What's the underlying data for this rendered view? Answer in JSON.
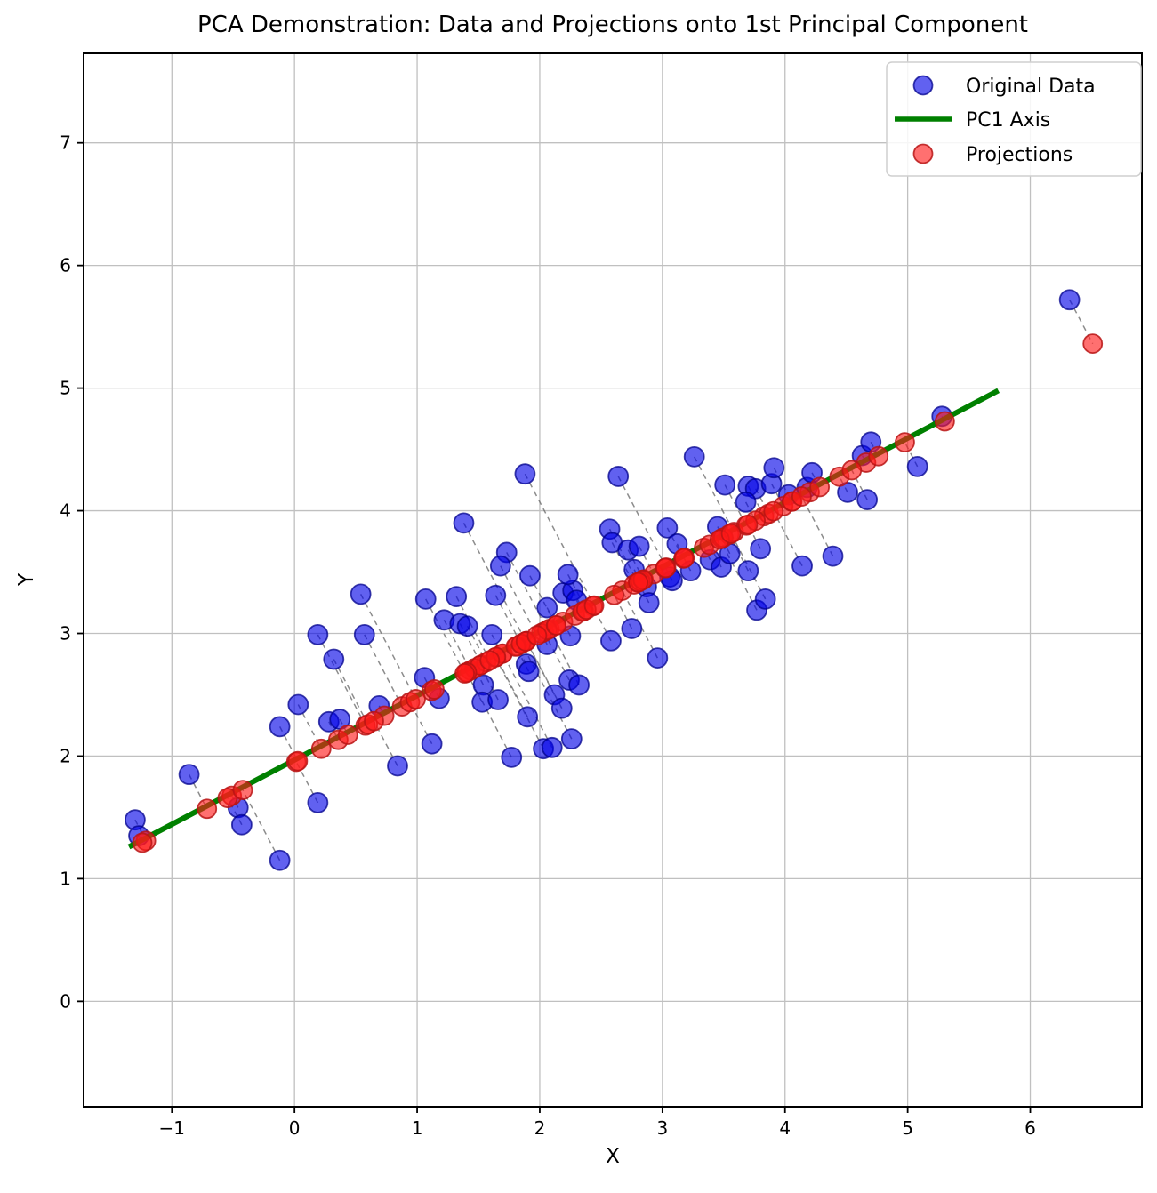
{
  "figure": {
    "title": "PCA Demonstration: Data and Projections onto 1st Principal Component",
    "xlabel": "X",
    "ylabel": "Y"
  },
  "legend": {
    "items": [
      {
        "label": "Original Data",
        "marker": "circle",
        "color": "#3a3ae0"
      },
      {
        "label": "PC1 Axis",
        "marker": "line",
        "color": "#008000"
      },
      {
        "label": "Projections",
        "marker": "circle",
        "color": "#f04545"
      }
    ]
  },
  "colors": {
    "original_fill": "rgba(0,0,230,0.62)",
    "original_edge": "rgba(0,0,140,0.75)",
    "projection_fill": "rgba(255,25,25,0.62)",
    "projection_edge": "rgba(185,20,20,0.85)",
    "pc1_line": "#008000",
    "connector": "#666666",
    "grid": "#c0c0c0",
    "spine": "#000000"
  },
  "chart_data": {
    "type": "scatter",
    "title": "PCA Demonstration: Data and Projections onto 1st Principal Component",
    "xlabel": "X",
    "ylabel": "Y",
    "xlim": [
      -1.72,
      6.91
    ],
    "ylim": [
      -0.86,
      7.73
    ],
    "xticks": [
      -1,
      0,
      1,
      2,
      3,
      4,
      5,
      6
    ],
    "yticks": [
      0,
      1,
      2,
      3,
      4,
      5,
      6,
      7
    ],
    "grid": true,
    "legend_position": "upper right",
    "pca": {
      "mean": [
        2.2,
        3.1
      ],
      "direction": [
        0.8855,
        0.4649
      ]
    },
    "series": [
      {
        "name": "Original Data",
        "type": "scatter",
        "color": "blue",
        "alpha": 0.6,
        "points": [
          [
            -1.3,
            1.48
          ],
          [
            -1.27,
            1.35
          ],
          [
            -0.86,
            1.85
          ],
          [
            -0.46,
            1.58
          ],
          [
            -0.43,
            1.44
          ],
          [
            -0.12,
            1.15
          ],
          [
            0.19,
            1.62
          ],
          [
            -0.12,
            2.24
          ],
          [
            0.03,
            2.42
          ],
          [
            0.19,
            2.99
          ],
          [
            0.32,
            2.79
          ],
          [
            0.57,
            2.99
          ],
          [
            0.28,
            2.28
          ],
          [
            0.37,
            2.3
          ],
          [
            0.69,
            2.41
          ],
          [
            1.06,
            2.64
          ],
          [
            1.18,
            2.47
          ],
          [
            1.22,
            3.11
          ],
          [
            1.35,
            3.08
          ],
          [
            1.41,
            3.06
          ],
          [
            1.61,
            2.99
          ],
          [
            1.54,
            2.58
          ],
          [
            1.53,
            2.44
          ],
          [
            1.66,
            2.46
          ],
          [
            1.12,
            2.1
          ],
          [
            0.84,
            1.92
          ],
          [
            1.77,
            1.99
          ],
          [
            2.03,
            2.06
          ],
          [
            2.1,
            2.07
          ],
          [
            2.26,
            2.14
          ],
          [
            1.9,
            2.32
          ],
          [
            2.12,
            2.5
          ],
          [
            2.18,
            2.39
          ],
          [
            2.24,
            2.62
          ],
          [
            2.32,
            2.58
          ],
          [
            1.89,
            2.75
          ],
          [
            1.91,
            2.69
          ],
          [
            2.06,
            2.91
          ],
          [
            2.25,
            2.98
          ],
          [
            2.58,
            2.94
          ],
          [
            2.96,
            2.8
          ],
          [
            0.54,
            3.32
          ],
          [
            1.07,
            3.28
          ],
          [
            1.32,
            3.3
          ],
          [
            1.64,
            3.31
          ],
          [
            1.38,
            3.9
          ],
          [
            1.73,
            3.66
          ],
          [
            1.68,
            3.55
          ],
          [
            1.92,
            3.47
          ],
          [
            2.06,
            3.21
          ],
          [
            2.19,
            3.33
          ],
          [
            2.27,
            3.35
          ],
          [
            2.3,
            3.27
          ],
          [
            2.23,
            3.48
          ],
          [
            1.88,
            4.3
          ],
          [
            2.64,
            4.28
          ],
          [
            2.57,
            3.85
          ],
          [
            2.59,
            3.74
          ],
          [
            2.72,
            3.68
          ],
          [
            2.81,
            3.71
          ],
          [
            2.77,
            3.52
          ],
          [
            2.87,
            3.38
          ],
          [
            2.89,
            3.25
          ],
          [
            2.75,
            3.04
          ],
          [
            3.04,
            3.86
          ],
          [
            3.12,
            3.73
          ],
          [
            3.23,
            3.51
          ],
          [
            3.06,
            3.46
          ],
          [
            3.39,
            3.6
          ],
          [
            3.48,
            3.54
          ],
          [
            3.55,
            3.65
          ],
          [
            3.7,
            3.51
          ],
          [
            3.45,
            3.87
          ],
          [
            3.08,
            3.43
          ],
          [
            3.26,
            4.44
          ],
          [
            3.51,
            4.21
          ],
          [
            3.7,
            4.2
          ],
          [
            3.76,
            4.18
          ],
          [
            3.89,
            4.22
          ],
          [
            3.68,
            4.07
          ],
          [
            3.91,
            4.35
          ],
          [
            4.03,
            4.13
          ],
          [
            4.18,
            4.19
          ],
          [
            4.22,
            4.31
          ],
          [
            4.51,
            4.15
          ],
          [
            4.63,
            4.45
          ],
          [
            4.67,
            4.09
          ],
          [
            4.7,
            4.56
          ],
          [
            5.08,
            4.36
          ],
          [
            5.28,
            4.77
          ],
          [
            3.77,
            3.19
          ],
          [
            3.84,
            3.28
          ],
          [
            3.8,
            3.69
          ],
          [
            4.14,
            3.55
          ],
          [
            4.39,
            3.63
          ],
          [
            6.32,
            5.72
          ]
        ]
      },
      {
        "name": "PC1 Axis",
        "type": "line",
        "color": "green",
        "linewidth": 4,
        "endpoints": [
          [
            -1.35,
            1.26
          ],
          [
            5.74,
            4.98
          ]
        ]
      },
      {
        "name": "Projections",
        "type": "scatter",
        "color": "red",
        "alpha": 0.6,
        "derived_from": "orthogonal projection of each Original Data point onto the PC1 axis (mean + ((p-mean)·u)u)"
      }
    ],
    "connectors": {
      "style": "dashed",
      "color": "gray",
      "description": "dashed segment joining each original point to its projection"
    }
  }
}
